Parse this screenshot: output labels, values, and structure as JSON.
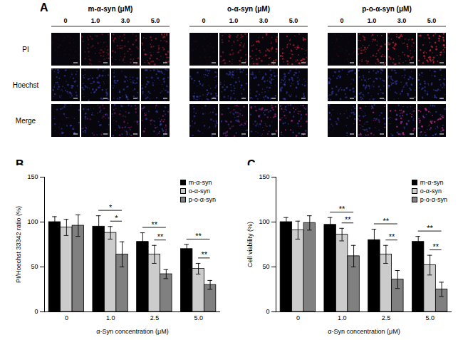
{
  "panel_a": {
    "label": "A",
    "groups": [
      {
        "title": "m-α-syn (μM)",
        "columns": [
          "0",
          "1.0",
          "3.0",
          "5.0"
        ]
      },
      {
        "title": "o-α-syn (μM)",
        "columns": [
          "0",
          "1.0",
          "3.0",
          "5.0"
        ]
      },
      {
        "title": "p-o-α-syn (μM)",
        "columns": [
          "0",
          "1.0",
          "3.0",
          "5.0"
        ]
      }
    ],
    "rows": [
      "PI",
      "Hoechst",
      "Merge"
    ]
  },
  "chart_data": [
    {
      "panel": "B",
      "type": "bar",
      "x_label": "α-Syn concentration (μM)",
      "y_label": "PI/Hoechst 33342 ratio (%)",
      "categories": [
        "0",
        "1.0",
        "2.5",
        "5.0"
      ],
      "series": [
        {
          "name": "m-α-syn",
          "color": "#000000",
          "values": [
            100,
            95,
            78,
            70
          ],
          "errors": [
            6,
            12,
            10,
            5
          ]
        },
        {
          "name": "o-α-syn",
          "color": "#cccccc",
          "values": [
            94,
            88,
            64,
            48
          ],
          "errors": [
            9,
            7,
            10,
            6
          ]
        },
        {
          "name": "p-o-α-syn",
          "color": "#808080",
          "values": [
            96,
            64,
            42,
            30
          ],
          "errors": [
            12,
            14,
            5,
            5
          ]
        }
      ],
      "ylim": [
        0,
        150
      ],
      "yticks": [
        0,
        50,
        100,
        150
      ],
      "legend": "top-right",
      "significance": [
        {
          "category": "1.0",
          "from": "m-α-syn",
          "to": "p-o-α-syn",
          "label": "*"
        },
        {
          "category": "1.0",
          "from": "o-α-syn",
          "to": "p-o-α-syn",
          "label": "*"
        },
        {
          "category": "2.5",
          "from": "m-α-syn",
          "to": "p-o-α-syn",
          "label": "**"
        },
        {
          "category": "2.5",
          "from": "o-α-syn",
          "to": "p-o-α-syn",
          "label": "**"
        },
        {
          "category": "5.0",
          "from": "m-α-syn",
          "to": "p-o-α-syn",
          "label": "**"
        },
        {
          "category": "5.0",
          "from": "o-α-syn",
          "to": "p-o-α-syn",
          "label": "**"
        }
      ]
    },
    {
      "panel": "C",
      "type": "bar",
      "x_label": "α-Syn concentration (μM)",
      "y_label": "Cell viability (%)",
      "categories": [
        "0",
        "1.0",
        "2.5",
        "5.0"
      ],
      "series": [
        {
          "name": "m-α-syn",
          "color": "#000000",
          "values": [
            100,
            97,
            80,
            78
          ],
          "errors": [
            5,
            8,
            12,
            6
          ]
        },
        {
          "name": "o-α-syn",
          "color": "#cccccc",
          "values": [
            91,
            86,
            64,
            52
          ],
          "errors": [
            10,
            7,
            10,
            11
          ]
        },
        {
          "name": "p-o-α-syn",
          "color": "#808080",
          "values": [
            99,
            62,
            36,
            25
          ],
          "errors": [
            8,
            12,
            10,
            8
          ]
        }
      ],
      "ylim": [
        0,
        150
      ],
      "yticks": [
        0,
        50,
        100,
        150
      ],
      "legend": "top-right",
      "significance": [
        {
          "category": "1.0",
          "from": "m-α-syn",
          "to": "p-o-α-syn",
          "label": "**"
        },
        {
          "category": "1.0",
          "from": "o-α-syn",
          "to": "p-o-α-syn",
          "label": "**"
        },
        {
          "category": "2.5",
          "from": "m-α-syn",
          "to": "p-o-α-syn",
          "label": "**"
        },
        {
          "category": "2.5",
          "from": "o-α-syn",
          "to": "p-o-α-syn",
          "label": "**"
        },
        {
          "category": "5.0",
          "from": "m-α-syn",
          "to": "p-o-α-syn",
          "label": "**"
        },
        {
          "category": "5.0",
          "from": "o-α-syn",
          "to": "p-o-α-syn",
          "label": "**"
        }
      ]
    }
  ]
}
